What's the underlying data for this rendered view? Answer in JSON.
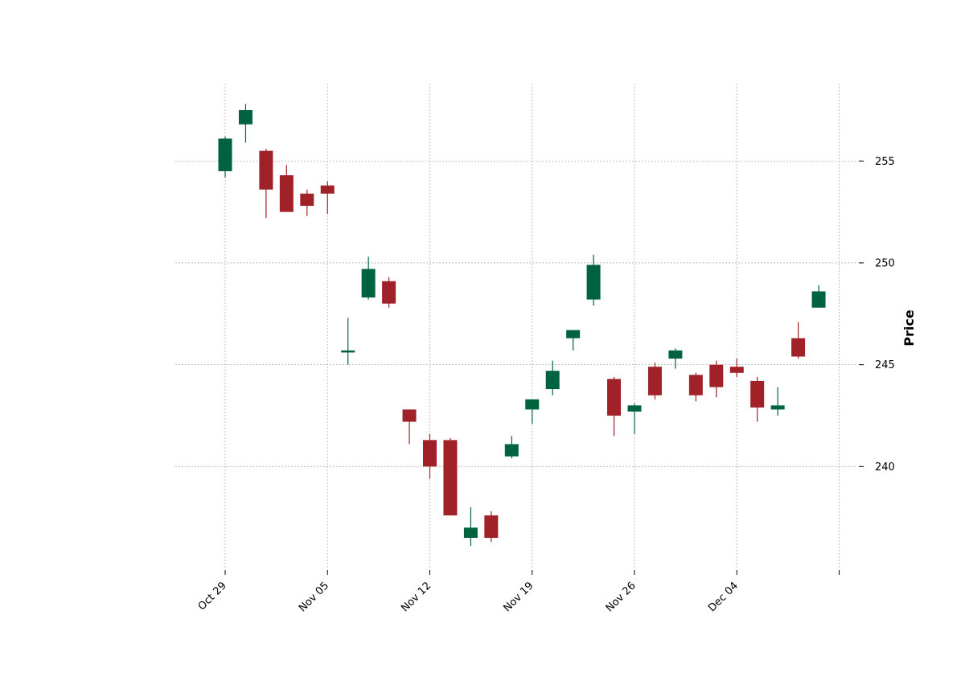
{
  "chart_data": {
    "type": "candlestick",
    "title": "",
    "xlabel": "",
    "ylabel": "Price",
    "ylim": [
      235.0,
      258.8
    ],
    "yticks": [
      240,
      245,
      250,
      255
    ],
    "ytick_labels": [
      "240",
      "245",
      "250",
      "255"
    ],
    "xticks": [
      {
        "index": 0,
        "label": "Oct 29"
      },
      {
        "index": 5,
        "label": "Nov 05"
      },
      {
        "index": 10,
        "label": "Nov 12"
      },
      {
        "index": 15,
        "label": "Nov 19"
      },
      {
        "index": 20,
        "label": "Nov 26"
      },
      {
        "index": 25,
        "label": "Dec 04"
      },
      {
        "index": 30,
        "label": ""
      }
    ],
    "grid": true,
    "colors": {
      "up": "#006340",
      "down": "#a02128",
      "grid": "#b0b0b0"
    },
    "candles": [
      {
        "open": 254.5,
        "high": 256.2,
        "low": 254.2,
        "close": 256.1
      },
      {
        "open": 256.8,
        "high": 257.8,
        "low": 255.9,
        "close": 257.5
      },
      {
        "open": 255.5,
        "high": 255.6,
        "low": 252.2,
        "close": 253.6
      },
      {
        "open": 254.3,
        "high": 254.8,
        "low": 252.5,
        "close": 252.5
      },
      {
        "open": 253.4,
        "high": 253.6,
        "low": 252.3,
        "close": 252.8
      },
      {
        "open": 253.8,
        "high": 254.0,
        "low": 252.4,
        "close": 253.4
      },
      {
        "open": 245.6,
        "high": 247.3,
        "low": 245.0,
        "close": 245.7
      },
      {
        "open": 248.3,
        "high": 250.3,
        "low": 248.2,
        "close": 249.7
      },
      {
        "open": 249.1,
        "high": 249.3,
        "low": 247.8,
        "close": 248.0
      },
      {
        "open": 242.8,
        "high": 242.8,
        "low": 241.1,
        "close": 242.2
      },
      {
        "open": 241.3,
        "high": 241.6,
        "low": 239.4,
        "close": 240.0
      },
      {
        "open": 241.3,
        "high": 241.4,
        "low": 237.6,
        "close": 237.6
      },
      {
        "open": 236.5,
        "high": 238.0,
        "low": 236.1,
        "close": 237.0
      },
      {
        "open": 237.6,
        "high": 237.8,
        "low": 236.3,
        "close": 236.5
      },
      {
        "open": 240.5,
        "high": 241.5,
        "low": 240.4,
        "close": 241.1
      },
      {
        "open": 242.8,
        "high": 243.3,
        "low": 242.1,
        "close": 243.3
      },
      {
        "open": 243.8,
        "high": 245.2,
        "low": 243.5,
        "close": 244.7
      },
      {
        "open": 246.3,
        "high": 246.7,
        "low": 245.7,
        "close": 246.7
      },
      {
        "open": 248.2,
        "high": 250.4,
        "low": 247.9,
        "close": 249.9
      },
      {
        "open": 244.3,
        "high": 244.4,
        "low": 241.5,
        "close": 242.5
      },
      {
        "open": 242.7,
        "high": 243.1,
        "low": 241.6,
        "close": 243.0
      },
      {
        "open": 244.9,
        "high": 245.1,
        "low": 243.3,
        "close": 243.5
      },
      {
        "open": 245.3,
        "high": 245.8,
        "low": 244.8,
        "close": 245.7
      },
      {
        "open": 244.5,
        "high": 244.6,
        "low": 243.2,
        "close": 243.5
      },
      {
        "open": 245.0,
        "high": 245.2,
        "low": 243.4,
        "close": 243.9
      },
      {
        "open": 244.9,
        "high": 245.3,
        "low": 244.4,
        "close": 244.6
      },
      {
        "open": 244.2,
        "high": 244.4,
        "low": 242.2,
        "close": 242.9
      },
      {
        "open": 242.8,
        "high": 243.9,
        "low": 242.5,
        "close": 243.0
      },
      {
        "open": 246.3,
        "high": 247.1,
        "low": 245.3,
        "close": 245.4
      },
      {
        "open": 247.8,
        "high": 248.9,
        "low": 247.8,
        "close": 248.6
      }
    ]
  }
}
